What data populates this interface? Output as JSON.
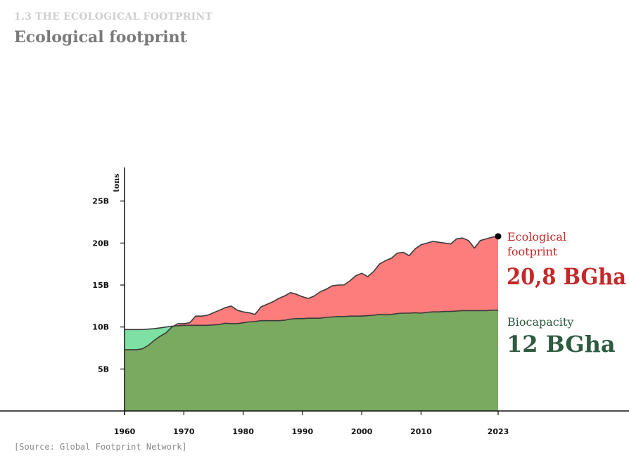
{
  "header": {
    "kicker": "1.3 THE ECOLOGICAL  FOOTPRINT",
    "title": "Ecological footprint"
  },
  "source": "[Source: Global Footprint Network]",
  "colors": {
    "footprint_area": "#fd7c7c",
    "footprint_text": "#c62828",
    "biocapacity_area": "#7aaa60",
    "surplus_area": "#7ee0a3",
    "biocapacity_text": "#2e5a40",
    "line": "#3c3c3c"
  },
  "chart_data": {
    "type": "area",
    "ylabel": "tons",
    "xlim": [
      1960,
      2023
    ],
    "ylim": [
      0,
      29
    ],
    "x_ticks": [
      "1960",
      "1970",
      "1980",
      "1990",
      "2000",
      "2010",
      "2023"
    ],
    "x_tick_values": [
      1960,
      1970,
      1980,
      1990,
      2000,
      2010,
      2023
    ],
    "y_ticks": [
      "5B",
      "10B",
      "15B",
      "20B",
      "25B"
    ],
    "y_tick_values": [
      5,
      10,
      15,
      20,
      25
    ],
    "x": [
      1960,
      1961,
      1962,
      1963,
      1964,
      1965,
      1966,
      1967,
      1968,
      1969,
      1970,
      1971,
      1972,
      1973,
      1974,
      1975,
      1976,
      1977,
      1978,
      1979,
      1980,
      1981,
      1982,
      1983,
      1984,
      1985,
      1986,
      1987,
      1988,
      1989,
      1990,
      1991,
      1992,
      1993,
      1994,
      1995,
      1996,
      1997,
      1998,
      1999,
      2000,
      2001,
      2002,
      2003,
      2004,
      2005,
      2006,
      2007,
      2008,
      2009,
      2010,
      2011,
      2012,
      2013,
      2014,
      2015,
      2016,
      2017,
      2018,
      2019,
      2020,
      2021,
      2022,
      2023
    ],
    "series": [
      {
        "name": "Ecological footprint",
        "values": [
          7.3,
          7.3,
          7.3,
          7.4,
          7.8,
          8.4,
          8.9,
          9.3,
          10.0,
          10.4,
          10.4,
          10.5,
          11.3,
          11.3,
          11.4,
          11.7,
          12.0,
          12.3,
          12.5,
          12.0,
          11.8,
          11.7,
          11.5,
          12.4,
          12.7,
          13.0,
          13.4,
          13.7,
          14.1,
          13.9,
          13.6,
          13.4,
          13.7,
          14.2,
          14.5,
          14.9,
          15.0,
          15.0,
          15.5,
          16.1,
          16.4,
          16.0,
          16.6,
          17.5,
          17.9,
          18.2,
          18.8,
          18.9,
          18.5,
          19.3,
          19.8,
          20.0,
          20.2,
          20.1,
          20.0,
          19.9,
          20.5,
          20.6,
          20.3,
          19.4,
          20.3,
          20.5,
          20.7,
          20.8
        ]
      },
      {
        "name": "Biocapacity",
        "values": [
          9.7,
          9.7,
          9.7,
          9.7,
          9.75,
          9.8,
          9.9,
          10.0,
          10.1,
          10.15,
          10.2,
          10.2,
          10.2,
          10.2,
          10.2,
          10.25,
          10.3,
          10.45,
          10.4,
          10.4,
          10.5,
          10.6,
          10.65,
          10.75,
          10.75,
          10.75,
          10.75,
          10.8,
          10.95,
          11.0,
          11.0,
          11.05,
          11.05,
          11.05,
          11.15,
          11.2,
          11.25,
          11.25,
          11.3,
          11.3,
          11.3,
          11.35,
          11.4,
          11.5,
          11.45,
          11.5,
          11.6,
          11.65,
          11.65,
          11.7,
          11.65,
          11.75,
          11.8,
          11.8,
          11.85,
          11.85,
          11.9,
          11.95,
          11.95,
          11.95,
          11.95,
          11.95,
          12.0,
          12.0
        ]
      }
    ],
    "annotations": [
      {
        "line1": "Ecological",
        "line2": "footprint",
        "value": "20,8 BGha"
      },
      {
        "line1": "Biocapacity",
        "value": "12 BGha"
      }
    ]
  }
}
